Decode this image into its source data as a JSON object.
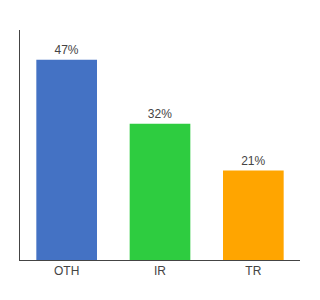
{
  "chart_data": {
    "type": "bar",
    "categories": [
      "OTH",
      "IR",
      "TR"
    ],
    "values": [
      47,
      32,
      21
    ],
    "value_labels": [
      "47%",
      "32%",
      "21%"
    ],
    "data_labels": true,
    "colors": [
      "#4472C4",
      "#2ECC40",
      "#FFA500"
    ],
    "ylim": [
      0,
      54
    ],
    "tick_labels": "x",
    "grid": false
  }
}
